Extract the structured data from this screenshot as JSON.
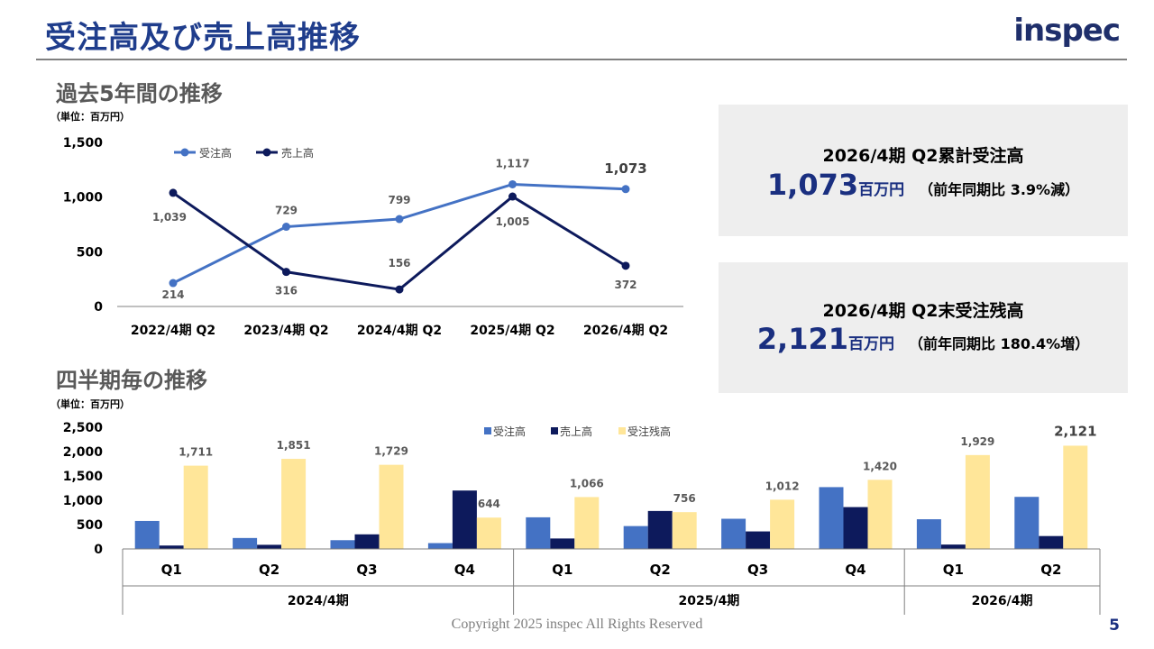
{
  "header": {
    "title": "受注高及び売上高推移",
    "logo": "inspec"
  },
  "section1": {
    "title": "過去5年間の推移",
    "unit": "（単位：百万円）"
  },
  "section2": {
    "title": "四半期毎の推移",
    "unit": "（単位：百万円）"
  },
  "box1": {
    "title": "2026/4期 Q2累計受注高",
    "value": "1,073",
    "unit": "百万円",
    "note": "（前年同期比 3.9%減）"
  },
  "box2": {
    "title": "2026/4期 Q2末受注残高",
    "value": "2,121",
    "unit": "百万円",
    "note": "（前年同期比 180.4%増）"
  },
  "footer": {
    "copyright": "Copyright 2025 inspec All Rights Reserved",
    "page": "5"
  },
  "colors": {
    "orders": "#4472c4",
    "sales": "#0d1a5c",
    "backlog": "#ffe699",
    "accent": "#1f3d8c"
  },
  "chart_data": [
    {
      "type": "line",
      "categories": [
        "2022/4期 Q2",
        "2023/4期 Q2",
        "2024/4期 Q2",
        "2025/4期 Q2",
        "2026/4期 Q2"
      ],
      "series": [
        {
          "name": "受注高",
          "values": [
            214,
            729,
            799,
            1117,
            1073
          ],
          "labels": [
            "214",
            "729",
            "799",
            "1,117",
            "1,073"
          ]
        },
        {
          "name": "売上高",
          "values": [
            1039,
            316,
            156,
            1005,
            372
          ],
          "labels": [
            "1,039",
            "316",
            "156",
            "1,005",
            "372"
          ]
        }
      ],
      "yticks": [
        "0",
        "500",
        "1,000",
        "1,500"
      ],
      "ylim": [
        0,
        1500
      ],
      "legend": "top-left",
      "grid": false
    },
    {
      "type": "bar",
      "categories": [
        "Q1",
        "Q2",
        "Q3",
        "Q4",
        "Q1",
        "Q2",
        "Q3",
        "Q4",
        "Q1",
        "Q2"
      ],
      "groups": [
        {
          "label": "2024/4期",
          "count": 4
        },
        {
          "label": "2025/4期",
          "count": 4
        },
        {
          "label": "2026/4期",
          "count": 2
        }
      ],
      "series": [
        {
          "name": "受注高",
          "values": [
            575,
            225,
            180,
            120,
            650,
            470,
            620,
            1270,
            610,
            1070
          ]
        },
        {
          "name": "売上高",
          "values": [
            70,
            85,
            300,
            1200,
            215,
            780,
            360,
            860,
            90,
            265
          ]
        },
        {
          "name": "受注残高",
          "values": [
            1711,
            1851,
            1729,
            644,
            1066,
            756,
            1012,
            1420,
            1929,
            2121
          ],
          "labels": [
            "1,711",
            "1,851",
            "1,729",
            "644",
            "1,066",
            "756",
            "1,012",
            "1,420",
            "1,929",
            "2,121"
          ]
        }
      ],
      "yticks": [
        "0",
        "500",
        "1,000",
        "1,500",
        "2,000",
        "2,500"
      ],
      "ylim": [
        0,
        2500
      ],
      "legend": "top-center",
      "grid": false
    }
  ]
}
